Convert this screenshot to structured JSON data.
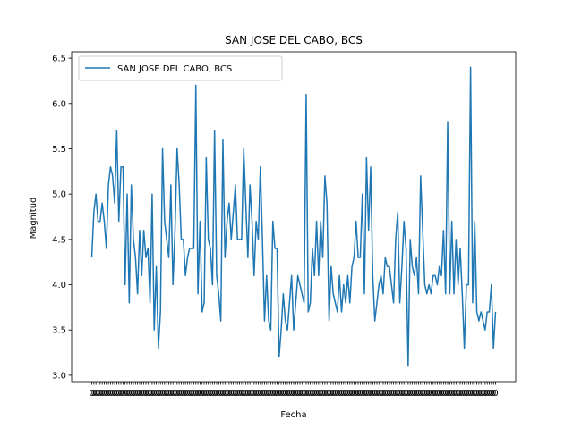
{
  "chart_data": {
    "type": "line",
    "title": "SAN JOSE DEL CABO, BCS",
    "xlabel": "Fecha",
    "ylabel": "Magnitud",
    "ylim": [
      2.93,
      6.57
    ],
    "yticks": [
      "3.0",
      "3.5",
      "4.0",
      "4.5",
      "5.0",
      "5.5",
      "6.0",
      "6.5"
    ],
    "xtick_label": "0",
    "legend_position": "upper-left",
    "grid": false,
    "series_color": "#1f77b4",
    "series": [
      {
        "name": "SAN JOSE DEL CABO, BCS",
        "values": [
          4.3,
          4.8,
          5.0,
          4.7,
          4.7,
          4.9,
          4.7,
          4.4,
          5.1,
          5.3,
          5.2,
          4.9,
          5.7,
          4.7,
          5.3,
          5.3,
          4.0,
          5.0,
          3.8,
          5.1,
          4.5,
          4.3,
          3.9,
          4.6,
          4.1,
          4.6,
          4.3,
          4.4,
          3.8,
          5.0,
          3.5,
          4.2,
          3.3,
          3.7,
          5.5,
          4.7,
          4.5,
          4.3,
          5.1,
          4.0,
          4.6,
          5.5,
          5.1,
          4.5,
          4.5,
          4.1,
          4.3,
          4.4,
          4.4,
          4.4,
          6.2,
          3.9,
          4.7,
          3.7,
          3.8,
          5.4,
          4.5,
          4.4,
          4.0,
          5.7,
          4.1,
          3.9,
          3.6,
          5.6,
          4.3,
          4.7,
          4.9,
          4.5,
          4.8,
          5.1,
          4.5,
          4.5,
          4.5,
          5.5,
          4.9,
          4.3,
          5.1,
          4.7,
          4.1,
          4.7,
          4.5,
          5.3,
          4.5,
          3.6,
          4.1,
          3.6,
          3.5,
          4.7,
          4.4,
          4.4,
          3.2,
          3.5,
          3.9,
          3.6,
          3.5,
          3.8,
          4.1,
          3.5,
          3.8,
          4.1,
          4.0,
          3.9,
          3.8,
          6.1,
          3.7,
          3.8,
          4.4,
          4.1,
          4.7,
          4.1,
          4.7,
          4.3,
          5.2,
          4.9,
          3.6,
          4.2,
          3.9,
          3.8,
          3.7,
          4.1,
          3.7,
          4.0,
          3.8,
          4.1,
          3.8,
          4.2,
          4.3,
          4.7,
          4.3,
          4.3,
          5.0,
          3.9,
          5.4,
          4.6,
          5.3,
          4.1,
          3.6,
          3.8,
          4.0,
          4.1,
          3.9,
          4.3,
          4.2,
          4.2,
          4.0,
          3.8,
          4.5,
          4.8,
          3.8,
          4.2,
          4.7,
          4.4,
          3.1,
          4.5,
          4.2,
          4.1,
          4.3,
          3.9,
          5.2,
          4.6,
          4.0,
          3.9,
          4.0,
          3.9,
          4.1,
          4.1,
          4.0,
          4.2,
          4.1,
          4.6,
          3.9,
          5.8,
          3.9,
          4.7,
          3.9,
          4.5,
          4.0,
          4.4,
          3.9,
          3.3,
          4.0,
          4.0,
          6.4,
          3.8,
          4.7,
          3.7,
          3.6,
          3.7,
          3.6,
          3.5,
          3.7,
          3.7,
          4.0,
          3.3,
          3.7
        ]
      }
    ]
  }
}
